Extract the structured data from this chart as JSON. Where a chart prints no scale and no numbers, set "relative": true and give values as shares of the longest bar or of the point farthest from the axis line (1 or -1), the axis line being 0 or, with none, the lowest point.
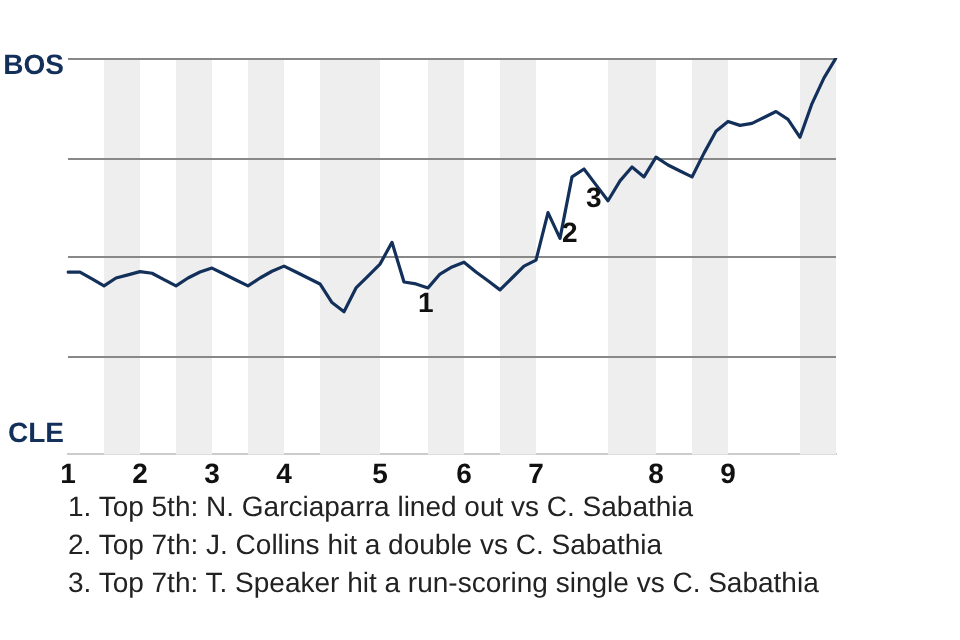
{
  "chart_data": {
    "type": "line",
    "relative": true,
    "marker": "none",
    "line_style": "solid",
    "categories": [
      "1",
      null,
      null,
      null,
      null,
      null,
      "2",
      null,
      null,
      null,
      null,
      null,
      "3",
      null,
      null,
      null,
      null,
      null,
      "4",
      null,
      null,
      null,
      null,
      null,
      null,
      null,
      "5",
      null,
      null,
      null,
      null,
      null,
      null,
      "6",
      null,
      null,
      null,
      null,
      null,
      "7",
      null,
      null,
      null,
      null,
      null,
      null,
      null,
      null,
      null,
      "8",
      null,
      null,
      null,
      null,
      null,
      "9",
      null,
      null,
      null,
      null,
      null,
      null,
      null,
      null,
      null
    ],
    "series": [
      {
        "color": "#13305a",
        "values": [
          0.46,
          0.46,
          0.443,
          0.425,
          0.445,
          0.453,
          0.461,
          0.457,
          0.441,
          0.425,
          0.445,
          0.46,
          0.47,
          0.455,
          0.44,
          0.425,
          0.445,
          0.462,
          0.475,
          0.46,
          0.445,
          0.43,
          0.383,
          0.36,
          0.42,
          0.45,
          0.48,
          0.535,
          0.435,
          0.43,
          0.42,
          0.455,
          0.473,
          0.485,
          0.46,
          0.438,
          0.415,
          0.445,
          0.475,
          0.49,
          0.61,
          0.545,
          0.7,
          0.72,
          0.68,
          0.64,
          0.69,
          0.725,
          0.7,
          0.75,
          0.73,
          0.715,
          0.7,
          0.76,
          0.815,
          0.84,
          0.83,
          0.835,
          0.85,
          0.865,
          0.845,
          0.8,
          0.885,
          0.95,
          1.0
        ]
      }
    ],
    "ref_lines": [
      {
        "axis": "y",
        "value": 0.25,
        "color": "#888888"
      },
      {
        "axis": "y",
        "value": 0.5,
        "color": "#888888"
      },
      {
        "axis": "y",
        "value": 0.75,
        "color": "#888888"
      },
      {
        "axis": "y",
        "value": 1,
        "color": "#888888"
      }
    ],
    "annotations": [
      "BOS",
      "CLE",
      {
        "text": "1",
        "y": 0.435
      },
      {
        "text": "2",
        "y": 0.61
      },
      {
        "text": "3",
        "y": 0.7
      },
      "1. Top 5th: N. Garciaparra lined out vs C. Sabathia",
      "2. Top 7th: J. Collins hit a double vs C. Sabathia",
      "3. Top 7th: T. Speaker hit a run-scoring single vs C. Sabathia"
    ]
  }
}
